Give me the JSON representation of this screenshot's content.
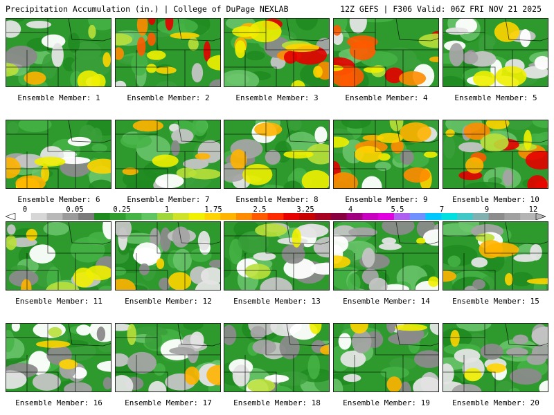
{
  "header": {
    "left": "Precipitation Accumulation (in.) | College of DuPage NEXLAB",
    "right": "12Z GEFS | F306 Valid: 06Z FRI NOV 21 2025"
  },
  "members": [
    {
      "label": "Ensemble Member: 1",
      "style": "mixed"
    },
    {
      "label": "Ensemble Member: 2",
      "style": "heavy"
    },
    {
      "label": "Ensemble Member: 3",
      "style": "heavy"
    },
    {
      "label": "Ensemble Member: 4",
      "style": "heavy"
    },
    {
      "label": "Ensemble Member: 5",
      "style": "dry"
    },
    {
      "label": "Ensemble Member: 6",
      "style": "mixed"
    },
    {
      "label": "Ensemble Member: 7",
      "style": "mixed"
    },
    {
      "label": "Ensemble Member: 8",
      "style": "mixed"
    },
    {
      "label": "Ensemble Member: 9",
      "style": "heavy"
    },
    {
      "label": "Ensemble Member: 10",
      "style": "heavy"
    },
    {
      "label": "Ensemble Member: 11",
      "style": "mixed"
    },
    {
      "label": "Ensemble Member: 12",
      "style": "dry"
    },
    {
      "label": "Ensemble Member: 13",
      "style": "dry"
    },
    {
      "label": "Ensemble Member: 14",
      "style": "dry"
    },
    {
      "label": "Ensemble Member: 15",
      "style": "mixed"
    },
    {
      "label": "Ensemble Member: 16",
      "style": "dry"
    },
    {
      "label": "Ensemble Member: 17",
      "style": "dry"
    },
    {
      "label": "Ensemble Member: 18",
      "style": "dry"
    },
    {
      "label": "Ensemble Member: 19",
      "style": "dry"
    },
    {
      "label": "Ensemble Member: 20",
      "style": "dry"
    }
  ],
  "scale": {
    "tick_labels": [
      "0",
      "0.05",
      "0.25",
      "1",
      "1.75",
      "2.5",
      "3.25",
      "4",
      "5.5",
      "7",
      "9",
      "12"
    ],
    "colors": [
      "#ffffff",
      "#d6d6d6",
      "#b8b8b8",
      "#9a9a9a",
      "#7a7a7a",
      "#1d8a1d",
      "#2f9e2f",
      "#45b345",
      "#60c460",
      "#9fd63a",
      "#cfe22a",
      "#f0f000",
      "#ffd400",
      "#ffb400",
      "#ff8c00",
      "#ff5a00",
      "#ff2a00",
      "#e60000",
      "#c80000",
      "#a80020",
      "#880040",
      "#a00080",
      "#c800c0",
      "#e000e0",
      "#b060f0",
      "#7090ff",
      "#00c8ff",
      "#00e0e0",
      "#40c8c8",
      "#80b0b0",
      "#8c8c8c",
      "#a0a0a0",
      "#b4b4b4"
    ]
  }
}
